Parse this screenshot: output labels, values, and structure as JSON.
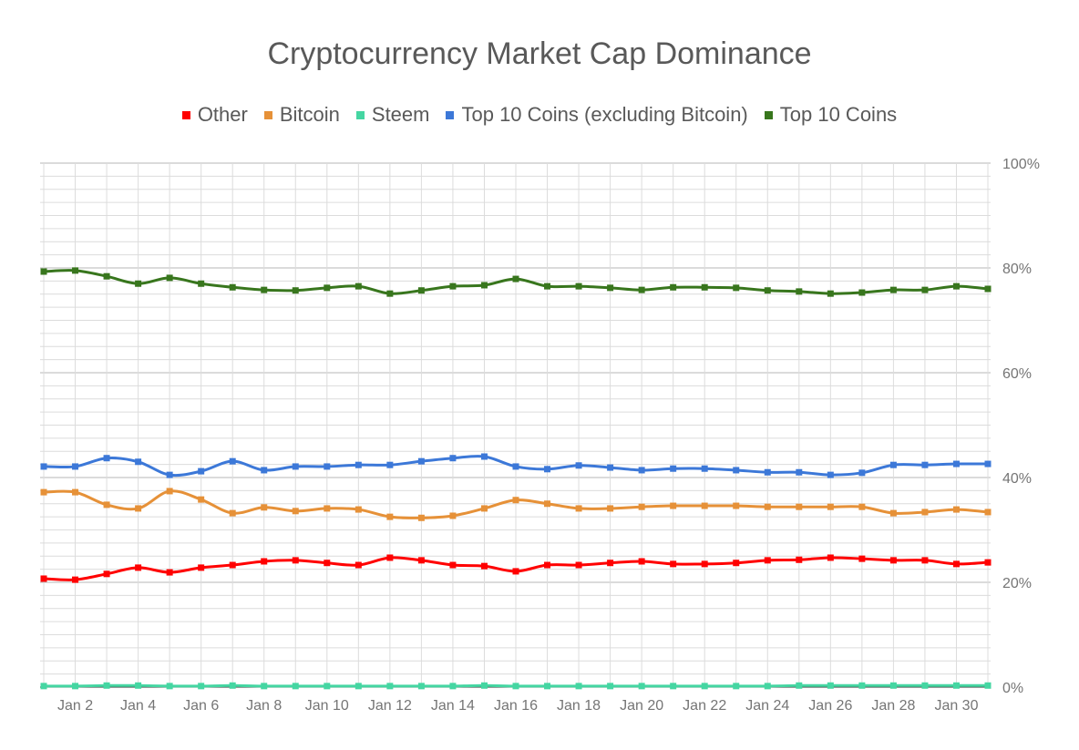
{
  "chart_data": {
    "type": "line",
    "title": "Cryptocurrency Market Cap Dominance",
    "legend_position": "top",
    "grid": true,
    "x": [
      "Jan 1",
      "Jan 2",
      "Jan 3",
      "Jan 4",
      "Jan 5",
      "Jan 6",
      "Jan 7",
      "Jan 8",
      "Jan 9",
      "Jan 10",
      "Jan 11",
      "Jan 12",
      "Jan 13",
      "Jan 14",
      "Jan 15",
      "Jan 16",
      "Jan 17",
      "Jan 18",
      "Jan 19",
      "Jan 20",
      "Jan 21",
      "Jan 22",
      "Jan 23",
      "Jan 24",
      "Jan 25",
      "Jan 26",
      "Jan 27",
      "Jan 28",
      "Jan 29",
      "Jan 30",
      "Jan 31"
    ],
    "x_tick_labels": [
      "Jan 2",
      "Jan 4",
      "Jan 6",
      "Jan 8",
      "Jan 10",
      "Jan 12",
      "Jan 14",
      "Jan 16",
      "Jan 18",
      "Jan 20",
      "Jan 22",
      "Jan 24",
      "Jan 26",
      "Jan 28",
      "Jan 30"
    ],
    "y_tick_labels": [
      "0%",
      "20%",
      "40%",
      "60%",
      "80%",
      "100%"
    ],
    "ylim": [
      0,
      100
    ],
    "y_axis_side": "right",
    "series": [
      {
        "name": "Other",
        "color": "#ff0000",
        "values": [
          20.7,
          20.5,
          21.6,
          22.8,
          21.9,
          22.8,
          23.3,
          24.0,
          24.2,
          23.7,
          23.3,
          24.7,
          24.2,
          23.3,
          23.1,
          22.1,
          23.3,
          23.3,
          23.7,
          24.0,
          23.5,
          23.5,
          23.7,
          24.2,
          24.3,
          24.7,
          24.5,
          24.2,
          24.2,
          23.5,
          23.8
        ]
      },
      {
        "name": "Bitcoin",
        "color": "#e69138",
        "values": [
          37.2,
          37.2,
          34.8,
          34.1,
          37.4,
          35.8,
          33.2,
          34.3,
          33.6,
          34.1,
          33.9,
          32.5,
          32.3,
          32.7,
          34.1,
          35.7,
          35.0,
          34.1,
          34.1,
          34.4,
          34.6,
          34.6,
          34.6,
          34.4,
          34.4,
          34.4,
          34.4,
          33.2,
          33.4,
          33.9,
          33.4
        ]
      },
      {
        "name": "Steem",
        "color": "#45d6a2",
        "values": [
          0.2,
          0.2,
          0.3,
          0.3,
          0.2,
          0.2,
          0.3,
          0.2,
          0.2,
          0.2,
          0.2,
          0.2,
          0.2,
          0.2,
          0.3,
          0.2,
          0.2,
          0.2,
          0.2,
          0.2,
          0.2,
          0.2,
          0.2,
          0.2,
          0.3,
          0.3,
          0.3,
          0.3,
          0.3,
          0.3,
          0.3
        ]
      },
      {
        "name": "Top 10 Coins (excluding Bitcoin)",
        "color": "#3c78d8",
        "values": [
          42.1,
          42.1,
          43.7,
          43.0,
          40.5,
          41.2,
          43.1,
          41.4,
          42.1,
          42.1,
          42.4,
          42.4,
          43.1,
          43.7,
          44.0,
          42.1,
          41.6,
          42.3,
          41.9,
          41.4,
          41.7,
          41.7,
          41.4,
          41.0,
          41.0,
          40.5,
          40.9,
          42.4,
          42.4,
          42.6,
          42.6
        ]
      },
      {
        "name": "Top 10 Coins",
        "color": "#38761d",
        "values": [
          79.3,
          79.5,
          78.4,
          77.0,
          78.1,
          77.0,
          76.3,
          75.8,
          75.7,
          76.2,
          76.5,
          75.1,
          75.7,
          76.5,
          76.7,
          77.9,
          76.5,
          76.5,
          76.2,
          75.8,
          76.3,
          76.3,
          76.2,
          75.7,
          75.5,
          75.1,
          75.3,
          75.8,
          75.8,
          76.5,
          76.0
        ]
      }
    ]
  }
}
